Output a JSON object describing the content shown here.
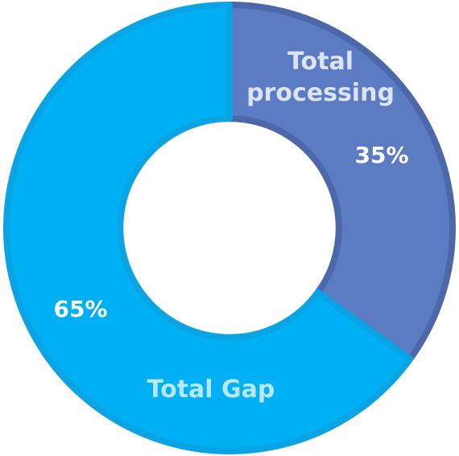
{
  "colors": {
    "background": "#ffffff",
    "processing_fill": "#5B7BC2",
    "processing_stroke": "#4C68A8",
    "processing_label": "#DCE3F6",
    "gap_fill": "#00B0F5",
    "gap_stroke": "#0AA3E3",
    "gap_label": "#B8E8FF",
    "percent_text": "#ffffff"
  },
  "chart_data": {
    "type": "pie",
    "title": "",
    "legend": "none",
    "inner_radius_ratio": 0.49,
    "categories": [
      "Total processing",
      "Total Gap"
    ],
    "values": [
      35,
      65
    ],
    "labels": [
      {
        "name_lines": [
          "Total",
          "processing"
        ],
        "percent": "35%"
      },
      {
        "name_lines": [
          "Total Gap"
        ],
        "percent": "65%"
      }
    ]
  }
}
